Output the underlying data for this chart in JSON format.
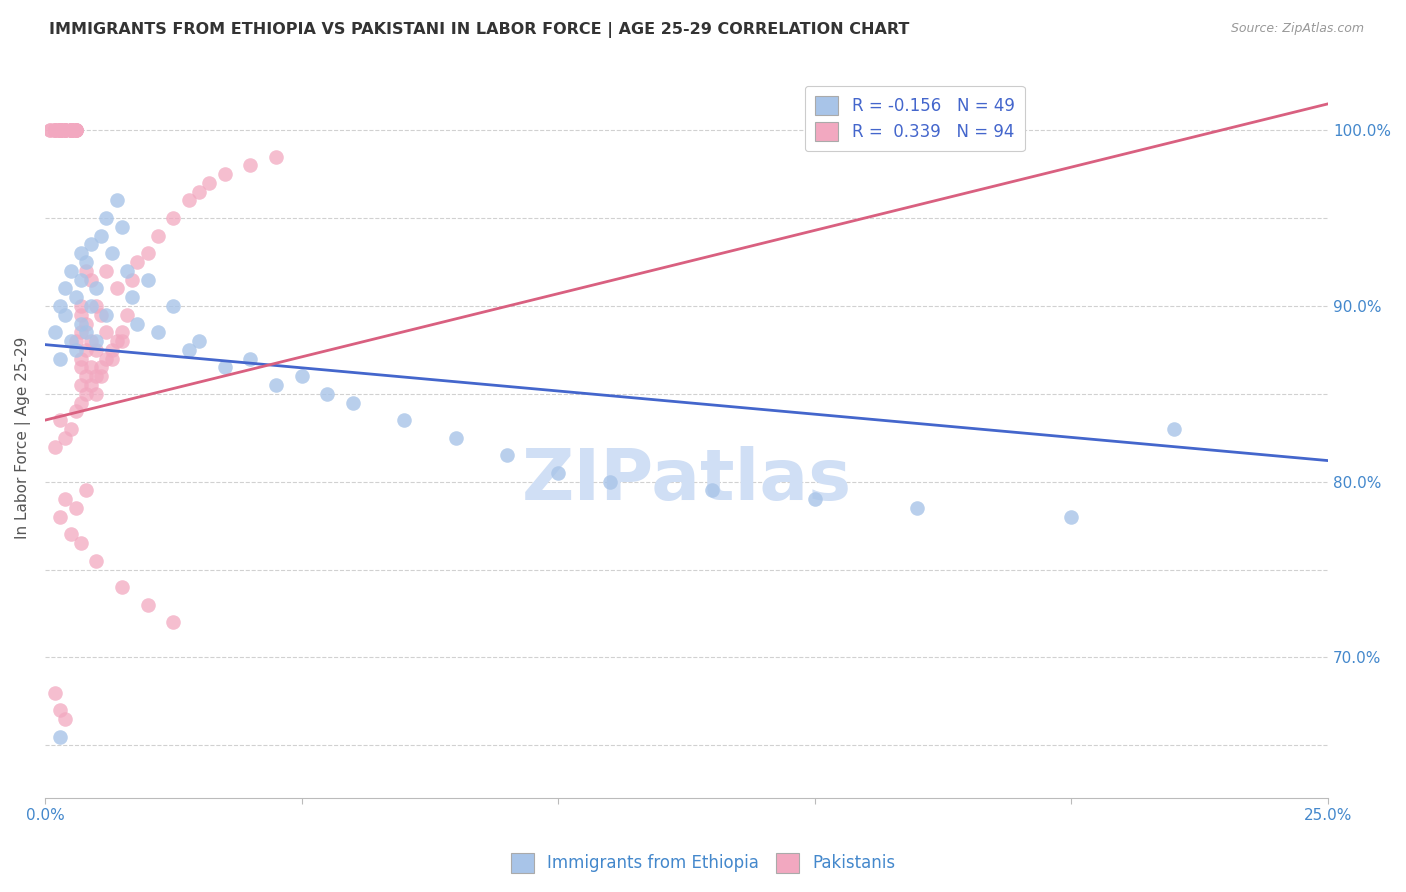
{
  "title": "IMMIGRANTS FROM ETHIOPIA VS PAKISTANI IN LABOR FORCE | AGE 25-29 CORRELATION CHART",
  "source": "Source: ZipAtlas.com",
  "ylabel": "In Labor Force | Age 25-29",
  "legend_blue_label": "Immigrants from Ethiopia",
  "legend_pink_label": "Pakistanis",
  "legend_r_blue": "R = -0.156",
  "legend_n_blue": "N = 49",
  "legend_r_pink": "R =  0.339",
  "legend_n_pink": "N = 94",
  "blue_color": "#a8c4e8",
  "pink_color": "#f2a8c0",
  "blue_line_color": "#4466cc",
  "pink_line_color": "#d96080",
  "watermark": "ZIPatlas",
  "watermark_color": "#d0dff5",
  "grid_color": "#cccccc",
  "title_color": "#333333",
  "axis_label_color": "#4488cc",
  "xlim": [
    0.0,
    0.25
  ],
  "ylim": [
    62.0,
    103.0
  ],
  "ytick_positions": [
    65.0,
    70.0,
    75.0,
    80.0,
    85.0,
    90.0,
    95.0,
    100.0
  ],
  "ytick_labels": [
    "",
    "70.0%",
    "",
    "80.0%",
    "",
    "90.0%",
    "",
    "100.0%"
  ],
  "xtick_positions": [
    0.0,
    0.05,
    0.1,
    0.15,
    0.2,
    0.25
  ],
  "xtick_labels": [
    "0.0%",
    "",
    "",
    "",
    "",
    "25.0%"
  ],
  "blue_trend_x": [
    0.0,
    0.25
  ],
  "blue_trend_y": [
    87.8,
    81.2
  ],
  "pink_trend_x": [
    0.0,
    0.25
  ],
  "pink_trend_y": [
    83.5,
    101.5
  ],
  "blue_scatter_x": [
    0.002,
    0.003,
    0.003,
    0.004,
    0.004,
    0.005,
    0.005,
    0.006,
    0.006,
    0.007,
    0.007,
    0.007,
    0.008,
    0.008,
    0.009,
    0.009,
    0.01,
    0.01,
    0.011,
    0.012,
    0.012,
    0.013,
    0.014,
    0.015,
    0.016,
    0.017,
    0.018,
    0.02,
    0.022,
    0.025,
    0.028,
    0.03,
    0.035,
    0.04,
    0.045,
    0.05,
    0.055,
    0.06,
    0.07,
    0.08,
    0.09,
    0.1,
    0.11,
    0.13,
    0.15,
    0.17,
    0.2,
    0.22,
    0.003
  ],
  "blue_scatter_y": [
    88.5,
    87.0,
    90.0,
    89.5,
    91.0,
    88.0,
    92.0,
    87.5,
    90.5,
    89.0,
    91.5,
    93.0,
    88.5,
    92.5,
    90.0,
    93.5,
    88.0,
    91.0,
    94.0,
    89.5,
    95.0,
    93.0,
    96.0,
    94.5,
    92.0,
    90.5,
    89.0,
    91.5,
    88.5,
    90.0,
    87.5,
    88.0,
    86.5,
    87.0,
    85.5,
    86.0,
    85.0,
    84.5,
    83.5,
    82.5,
    81.5,
    80.5,
    80.0,
    79.5,
    79.0,
    78.5,
    78.0,
    83.0,
    65.5
  ],
  "pink_scatter_x": [
    0.001,
    0.001,
    0.002,
    0.002,
    0.002,
    0.002,
    0.003,
    0.003,
    0.003,
    0.003,
    0.003,
    0.003,
    0.003,
    0.004,
    0.004,
    0.004,
    0.004,
    0.004,
    0.005,
    0.005,
    0.005,
    0.005,
    0.005,
    0.005,
    0.005,
    0.006,
    0.006,
    0.006,
    0.006,
    0.006,
    0.006,
    0.007,
    0.007,
    0.007,
    0.007,
    0.007,
    0.007,
    0.008,
    0.008,
    0.008,
    0.008,
    0.009,
    0.009,
    0.009,
    0.01,
    0.01,
    0.01,
    0.011,
    0.011,
    0.012,
    0.012,
    0.013,
    0.014,
    0.015,
    0.016,
    0.017,
    0.018,
    0.02,
    0.022,
    0.025,
    0.028,
    0.03,
    0.032,
    0.035,
    0.04,
    0.045,
    0.002,
    0.003,
    0.004,
    0.005,
    0.006,
    0.007,
    0.008,
    0.009,
    0.01,
    0.011,
    0.012,
    0.013,
    0.014,
    0.015,
    0.003,
    0.004,
    0.005,
    0.006,
    0.007,
    0.008,
    0.01,
    0.015,
    0.02,
    0.025,
    0.002,
    0.003,
    0.004,
    0.17
  ],
  "pink_scatter_y": [
    100.0,
    100.0,
    100.0,
    100.0,
    100.0,
    100.0,
    100.0,
    100.0,
    100.0,
    100.0,
    100.0,
    100.0,
    100.0,
    100.0,
    100.0,
    100.0,
    100.0,
    100.0,
    100.0,
    100.0,
    100.0,
    100.0,
    100.0,
    100.0,
    100.0,
    100.0,
    100.0,
    100.0,
    100.0,
    100.0,
    88.0,
    89.5,
    87.0,
    90.0,
    88.5,
    86.5,
    85.5,
    92.0,
    89.0,
    87.5,
    86.0,
    91.5,
    88.0,
    86.5,
    90.0,
    87.5,
    85.0,
    89.5,
    86.0,
    92.0,
    88.5,
    87.0,
    91.0,
    88.0,
    89.5,
    91.5,
    92.5,
    93.0,
    94.0,
    95.0,
    96.0,
    96.5,
    97.0,
    97.5,
    98.0,
    98.5,
    82.0,
    83.5,
    82.5,
    83.0,
    84.0,
    84.5,
    85.0,
    85.5,
    86.0,
    86.5,
    87.0,
    87.5,
    88.0,
    88.5,
    78.0,
    79.0,
    77.0,
    78.5,
    76.5,
    79.5,
    75.5,
    74.0,
    73.0,
    72.0,
    68.0,
    67.0,
    66.5,
    100.0
  ]
}
